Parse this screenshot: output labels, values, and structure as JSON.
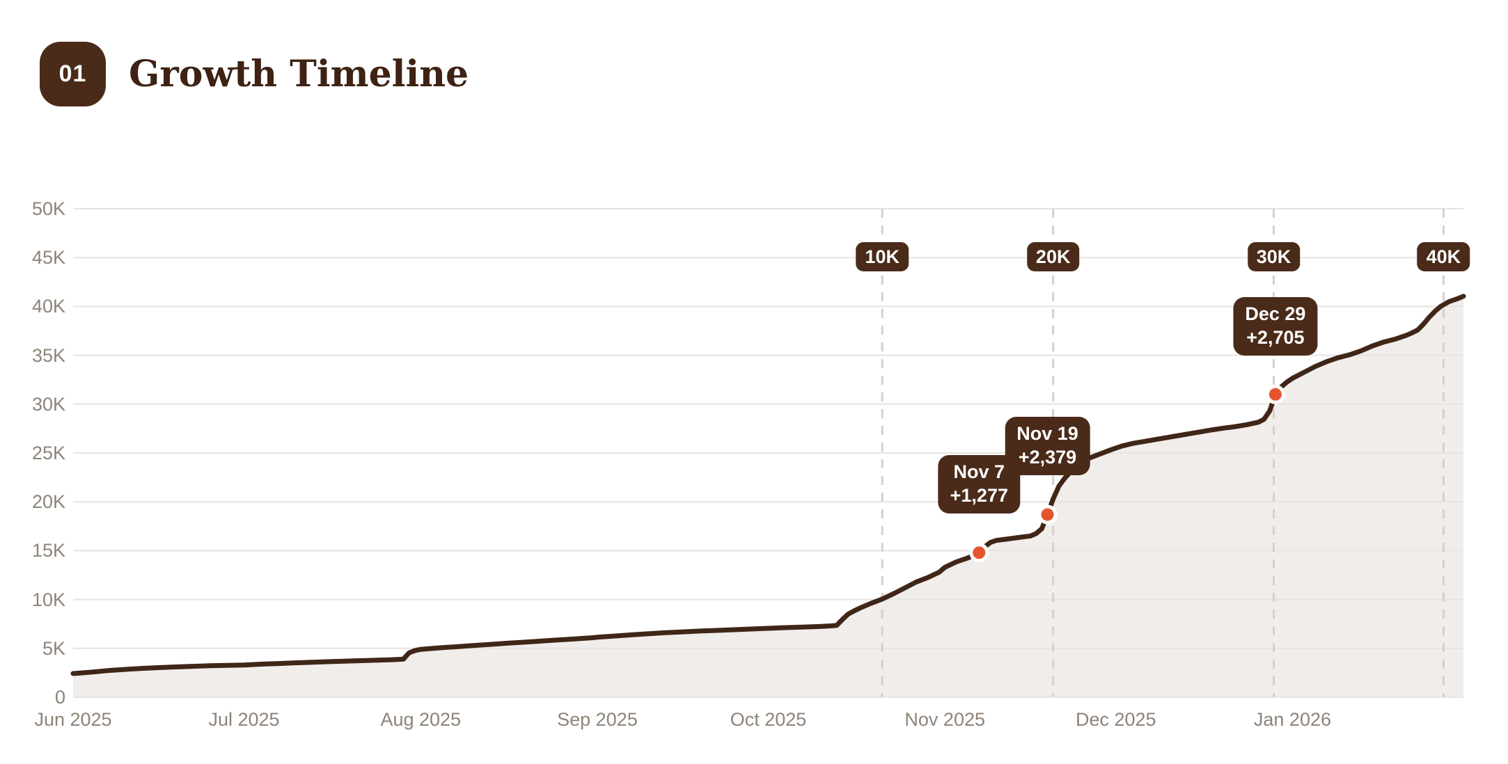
{
  "header": {
    "section_number": "01",
    "title": "Growth Timeline"
  },
  "colors": {
    "background": "#ffffff",
    "brown_badge": "#4a2b19",
    "title_text": "#3e2213",
    "line": "#3f2617",
    "area_fill": "#f1edea",
    "gridline": "#e7e3df",
    "dashed_line": "#d6d0c9",
    "axis_text": "#8d8379",
    "dot_orange": "#e4552d",
    "dot_ring": "#ffffff"
  },
  "chart_data": {
    "type": "area",
    "title": "Growth Timeline",
    "xlabel": "",
    "ylabel": "",
    "grid": "horizontal",
    "x_axis": {
      "months": [
        {
          "label": "Jun 2025",
          "day": 0
        },
        {
          "label": "Jul 2025",
          "day": 30
        },
        {
          "label": "Aug 2025",
          "day": 61
        },
        {
          "label": "Sep 2025",
          "day": 92
        },
        {
          "label": "Oct 2025",
          "day": 122
        },
        {
          "label": "Nov 2025",
          "day": 153
        },
        {
          "label": "Dec 2025",
          "day": 183
        },
        {
          "label": "Jan 2026",
          "day": 214
        }
      ],
      "range_days": [
        0,
        244
      ]
    },
    "y_axis": {
      "ticks": [
        {
          "label": "0",
          "value_k": 0
        },
        {
          "label": "5K",
          "value_k": 5
        },
        {
          "label": "10K",
          "value_k": 10
        },
        {
          "label": "15K",
          "value_k": 15
        },
        {
          "label": "20K",
          "value_k": 20
        },
        {
          "label": "25K",
          "value_k": 25
        },
        {
          "label": "30K",
          "value_k": 30
        },
        {
          "label": "35K",
          "value_k": 35
        },
        {
          "label": "40K",
          "value_k": 40
        },
        {
          "label": "45K",
          "value_k": 45
        },
        {
          "label": "50K",
          "value_k": 50
        }
      ],
      "ylim_k": [
        0,
        50
      ]
    },
    "milestones": [
      {
        "label": "10K",
        "day": 142
      },
      {
        "label": "20K",
        "day": 172
      },
      {
        "label": "30K",
        "day": 210.7
      },
      {
        "label": "40K",
        "day": 240.5
      }
    ],
    "annotations": [
      {
        "date": "Nov 7",
        "gain": "+1,277",
        "day": 159,
        "value_k": 14.8
      },
      {
        "date": "Nov 19",
        "gain": "+2,379",
        "day": 171,
        "value_k": 18.7
      },
      {
        "date": "Dec 29",
        "gain": "+2,705",
        "day": 211,
        "value_k": 31.0
      }
    ],
    "series": [
      {
        "name": "cumulative-total",
        "points_day_valueK": [
          [
            0,
            2.42
          ],
          [
            3,
            2.56
          ],
          [
            6,
            2.72
          ],
          [
            9,
            2.84
          ],
          [
            12,
            2.95
          ],
          [
            15,
            3.03
          ],
          [
            18,
            3.1
          ],
          [
            21,
            3.16
          ],
          [
            24,
            3.22
          ],
          [
            27,
            3.26
          ],
          [
            30,
            3.3
          ],
          [
            33,
            3.38
          ],
          [
            36,
            3.45
          ],
          [
            39,
            3.52
          ],
          [
            42,
            3.58
          ],
          [
            45,
            3.64
          ],
          [
            48,
            3.7
          ],
          [
            51,
            3.75
          ],
          [
            54,
            3.8
          ],
          [
            56,
            3.84
          ],
          [
            58,
            3.9
          ],
          [
            58.5,
            4.25
          ],
          [
            59,
            4.55
          ],
          [
            60,
            4.78
          ],
          [
            61,
            4.9
          ],
          [
            64,
            5.04
          ],
          [
            67,
            5.16
          ],
          [
            70,
            5.28
          ],
          [
            73,
            5.4
          ],
          [
            76,
            5.52
          ],
          [
            79,
            5.63
          ],
          [
            82,
            5.74
          ],
          [
            85,
            5.86
          ],
          [
            88,
            5.97
          ],
          [
            91,
            6.08
          ],
          [
            92,
            6.14
          ],
          [
            95,
            6.26
          ],
          [
            98,
            6.38
          ],
          [
            101,
            6.5
          ],
          [
            104,
            6.6
          ],
          [
            107,
            6.69
          ],
          [
            110,
            6.77
          ],
          [
            113,
            6.84
          ],
          [
            116,
            6.91
          ],
          [
            119,
            6.98
          ],
          [
            122,
            7.05
          ],
          [
            125,
            7.12
          ],
          [
            128,
            7.18
          ],
          [
            131,
            7.24
          ],
          [
            133,
            7.3
          ],
          [
            134,
            7.35
          ],
          [
            135,
            7.95
          ],
          [
            136,
            8.5
          ],
          [
            137,
            8.82
          ],
          [
            138,
            9.1
          ],
          [
            139,
            9.35
          ],
          [
            140,
            9.6
          ],
          [
            141,
            9.82
          ],
          [
            142,
            10.05
          ],
          [
            144,
            10.6
          ],
          [
            146,
            11.2
          ],
          [
            148,
            11.8
          ],
          [
            150,
            12.25
          ],
          [
            152,
            12.8
          ],
          [
            153,
            13.3
          ],
          [
            155,
            13.85
          ],
          [
            157,
            14.25
          ],
          [
            158,
            14.5
          ],
          [
            159,
            14.8
          ],
          [
            160,
            15.4
          ],
          [
            161,
            15.85
          ],
          [
            162,
            16.05
          ],
          [
            164,
            16.2
          ],
          [
            166,
            16.35
          ],
          [
            168,
            16.5
          ],
          [
            169,
            16.75
          ],
          [
            170,
            17.25
          ],
          [
            171,
            18.7
          ],
          [
            172,
            20.3
          ],
          [
            173,
            21.6
          ],
          [
            174,
            22.4
          ],
          [
            175,
            23.05
          ],
          [
            176,
            23.6
          ],
          [
            177,
            24.05
          ],
          [
            178,
            24.4
          ],
          [
            180,
            24.85
          ],
          [
            182,
            25.3
          ],
          [
            184,
            25.7
          ],
          [
            186,
            25.98
          ],
          [
            188,
            26.18
          ],
          [
            190,
            26.38
          ],
          [
            192,
            26.58
          ],
          [
            194,
            26.78
          ],
          [
            196,
            26.98
          ],
          [
            198,
            27.18
          ],
          [
            200,
            27.38
          ],
          [
            202,
            27.55
          ],
          [
            204,
            27.7
          ],
          [
            206,
            27.9
          ],
          [
            208,
            28.15
          ],
          [
            209,
            28.45
          ],
          [
            210,
            29.3
          ],
          [
            211,
            31.0
          ],
          [
            212,
            31.75
          ],
          [
            213,
            32.25
          ],
          [
            214,
            32.65
          ],
          [
            216,
            33.25
          ],
          [
            218,
            33.85
          ],
          [
            220,
            34.35
          ],
          [
            222,
            34.75
          ],
          [
            224,
            35.05
          ],
          [
            226,
            35.45
          ],
          [
            228,
            35.95
          ],
          [
            230,
            36.35
          ],
          [
            232,
            36.65
          ],
          [
            234,
            37.05
          ],
          [
            235,
            37.3
          ],
          [
            236,
            37.6
          ],
          [
            237,
            38.2
          ],
          [
            238,
            38.9
          ],
          [
            239,
            39.5
          ],
          [
            240,
            40.0
          ],
          [
            241.5,
            40.5
          ],
          [
            243,
            40.8
          ],
          [
            244,
            41.05
          ]
        ]
      }
    ]
  }
}
